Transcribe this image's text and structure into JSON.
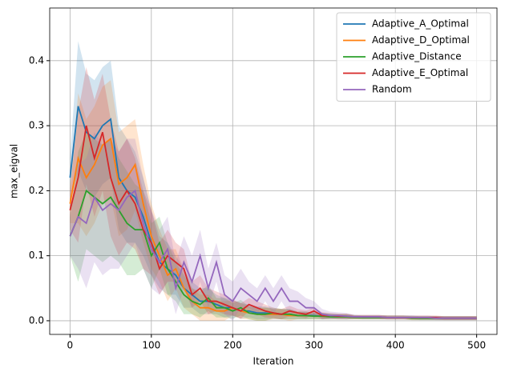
{
  "chart_data": {
    "type": "line",
    "xlabel": "Iteration",
    "ylabel": "max_eigval",
    "x": [
      0,
      10,
      20,
      30,
      40,
      50,
      60,
      70,
      80,
      90,
      100,
      110,
      120,
      130,
      140,
      150,
      160,
      170,
      180,
      190,
      200,
      210,
      220,
      230,
      240,
      250,
      260,
      270,
      280,
      290,
      300,
      310,
      320,
      330,
      340,
      350,
      360,
      370,
      380,
      390,
      400,
      410,
      420,
      430,
      440,
      450,
      460,
      470,
      480,
      490,
      500
    ],
    "xlim": [
      -25,
      525
    ],
    "ylim": [
      -0.021,
      0.481
    ],
    "xticks": [
      0,
      100,
      200,
      300,
      400,
      500
    ],
    "yticks": [
      {
        "value": 0,
        "label": "0.0"
      },
      0.1,
      0.2,
      0.3,
      0.4
    ],
    "grid": true,
    "legend": "upper right",
    "series": [
      {
        "name": "Adaptive_A_Optimal",
        "color": "#1f77b4",
        "values": [
          0.22,
          0.33,
          0.29,
          0.28,
          0.3,
          0.31,
          0.22,
          0.2,
          0.19,
          0.16,
          0.12,
          0.09,
          0.08,
          0.07,
          0.05,
          0.04,
          0.03,
          0.03,
          0.025,
          0.02,
          0.02,
          0.015,
          0.015,
          0.012,
          0.012,
          0.01,
          0.01,
          0.01,
          0.008,
          0.008,
          0.008,
          0.007,
          0.007,
          0.006,
          0.006,
          0.006,
          0.005,
          0.005,
          0.005,
          0.005,
          0.005,
          0.005,
          0.005,
          0.004,
          0.004,
          0.004,
          0.004,
          0.004,
          0.004,
          0.004,
          0.004
        ],
        "errors": [
          0.03,
          0.1,
          0.09,
          0.09,
          0.09,
          0.09,
          0.08,
          0.08,
          0.07,
          0.06,
          0.05,
          0.04,
          0.04,
          0.03,
          0.03,
          0.02,
          0.02,
          0.02,
          0.015,
          0.015,
          0.012,
          0.012,
          0.01,
          0.01,
          0.01,
          0.008,
          0.008,
          0.008,
          0.006,
          0.006,
          0.005,
          0.005,
          0.004,
          0.004,
          0.004,
          0.003,
          0.003,
          0.003,
          0.003,
          0.003,
          0.003,
          0.003,
          0.003,
          0.003,
          0.003,
          0.003,
          0.003,
          0.003,
          0.003,
          0.003,
          0.003
        ]
      },
      {
        "name": "Adaptive_D_Optimal",
        "color": "#ff7f0e",
        "values": [
          0.18,
          0.25,
          0.22,
          0.24,
          0.27,
          0.28,
          0.21,
          0.22,
          0.24,
          0.18,
          0.13,
          0.1,
          0.07,
          0.08,
          0.05,
          0.03,
          0.02,
          0.02,
          0.015,
          0.015,
          0.02,
          0.015,
          0.012,
          0.01,
          0.01,
          0.01,
          0.01,
          0.008,
          0.008,
          0.008,
          0.007,
          0.007,
          0.006,
          0.006,
          0.006,
          0.005,
          0.005,
          0.005,
          0.005,
          0.005,
          0.005,
          0.005,
          0.004,
          0.004,
          0.004,
          0.004,
          0.004,
          0.004,
          0.004,
          0.004,
          0.004
        ],
        "errors": [
          0.03,
          0.1,
          0.09,
          0.09,
          0.09,
          0.09,
          0.08,
          0.08,
          0.07,
          0.06,
          0.05,
          0.04,
          0.04,
          0.03,
          0.03,
          0.02,
          0.02,
          0.02,
          0.015,
          0.015,
          0.012,
          0.012,
          0.01,
          0.01,
          0.01,
          0.008,
          0.008,
          0.008,
          0.006,
          0.006,
          0.005,
          0.005,
          0.004,
          0.004,
          0.004,
          0.003,
          0.003,
          0.003,
          0.003,
          0.003,
          0.003,
          0.003,
          0.003,
          0.003,
          0.003,
          0.003,
          0.003,
          0.003,
          0.003,
          0.003,
          0.003
        ]
      },
      {
        "name": "Adaptive_Distance",
        "color": "#2ca02c",
        "values": [
          0.13,
          0.16,
          0.2,
          0.19,
          0.18,
          0.19,
          0.17,
          0.15,
          0.14,
          0.14,
          0.1,
          0.12,
          0.08,
          0.06,
          0.04,
          0.03,
          0.025,
          0.035,
          0.02,
          0.02,
          0.015,
          0.02,
          0.012,
          0.01,
          0.01,
          0.012,
          0.01,
          0.01,
          0.008,
          0.008,
          0.007,
          0.007,
          0.006,
          0.006,
          0.006,
          0.005,
          0.005,
          0.005,
          0.005,
          0.005,
          0.005,
          0.005,
          0.004,
          0.004,
          0.004,
          0.004,
          0.004,
          0.004,
          0.004,
          0.004,
          0.004
        ],
        "errors": [
          0.03,
          0.1,
          0.09,
          0.09,
          0.09,
          0.09,
          0.08,
          0.08,
          0.07,
          0.06,
          0.05,
          0.04,
          0.04,
          0.03,
          0.03,
          0.02,
          0.02,
          0.02,
          0.015,
          0.015,
          0.012,
          0.012,
          0.01,
          0.01,
          0.01,
          0.008,
          0.008,
          0.008,
          0.006,
          0.006,
          0.005,
          0.005,
          0.004,
          0.004,
          0.004,
          0.003,
          0.003,
          0.003,
          0.003,
          0.003,
          0.003,
          0.003,
          0.003,
          0.003,
          0.003,
          0.003,
          0.003,
          0.003,
          0.003,
          0.003,
          0.003
        ]
      },
      {
        "name": "Adaptive_E_Optimal",
        "color": "#d62728",
        "values": [
          0.17,
          0.22,
          0.3,
          0.25,
          0.29,
          0.22,
          0.18,
          0.2,
          0.18,
          0.14,
          0.12,
          0.08,
          0.1,
          0.09,
          0.08,
          0.04,
          0.05,
          0.03,
          0.03,
          0.025,
          0.02,
          0.015,
          0.025,
          0.02,
          0.015,
          0.012,
          0.01,
          0.015,
          0.012,
          0.01,
          0.015,
          0.008,
          0.008,
          0.007,
          0.007,
          0.006,
          0.006,
          0.006,
          0.006,
          0.005,
          0.005,
          0.005,
          0.005,
          0.005,
          0.005,
          0.005,
          0.004,
          0.004,
          0.004,
          0.004,
          0.004
        ],
        "errors": [
          0.03,
          0.1,
          0.09,
          0.09,
          0.09,
          0.09,
          0.08,
          0.08,
          0.07,
          0.06,
          0.05,
          0.04,
          0.04,
          0.03,
          0.03,
          0.02,
          0.02,
          0.02,
          0.015,
          0.015,
          0.012,
          0.012,
          0.01,
          0.01,
          0.01,
          0.008,
          0.008,
          0.008,
          0.006,
          0.006,
          0.005,
          0.005,
          0.004,
          0.004,
          0.004,
          0.003,
          0.003,
          0.003,
          0.003,
          0.003,
          0.003,
          0.003,
          0.003,
          0.003,
          0.003,
          0.003,
          0.003,
          0.003,
          0.003,
          0.003,
          0.003
        ]
      },
      {
        "name": "Random",
        "color": "#9467bd",
        "values": [
          0.13,
          0.16,
          0.15,
          0.19,
          0.17,
          0.18,
          0.17,
          0.19,
          0.2,
          0.15,
          0.11,
          0.09,
          0.11,
          0.05,
          0.09,
          0.06,
          0.1,
          0.05,
          0.09,
          0.04,
          0.03,
          0.05,
          0.04,
          0.03,
          0.05,
          0.03,
          0.05,
          0.03,
          0.03,
          0.02,
          0.02,
          0.01,
          0.008,
          0.008,
          0.007,
          0.006,
          0.006,
          0.006,
          0.006,
          0.005,
          0.005,
          0.005,
          0.005,
          0.005,
          0.005,
          0.004,
          0.004,
          0.004,
          0.004,
          0.004,
          0.004
        ],
        "errors": [
          0.03,
          0.08,
          0.1,
          0.1,
          0.1,
          0.1,
          0.09,
          0.09,
          0.08,
          0.07,
          0.06,
          0.05,
          0.05,
          0.04,
          0.04,
          0.04,
          0.04,
          0.03,
          0.03,
          0.03,
          0.03,
          0.03,
          0.02,
          0.02,
          0.02,
          0.02,
          0.02,
          0.02,
          0.015,
          0.015,
          0.01,
          0.008,
          0.006,
          0.005,
          0.005,
          0.003,
          0.003,
          0.003,
          0.003,
          0.003,
          0.003,
          0.003,
          0.003,
          0.003,
          0.003,
          0.003,
          0.003,
          0.003,
          0.003,
          0.003,
          0.003
        ]
      }
    ]
  }
}
